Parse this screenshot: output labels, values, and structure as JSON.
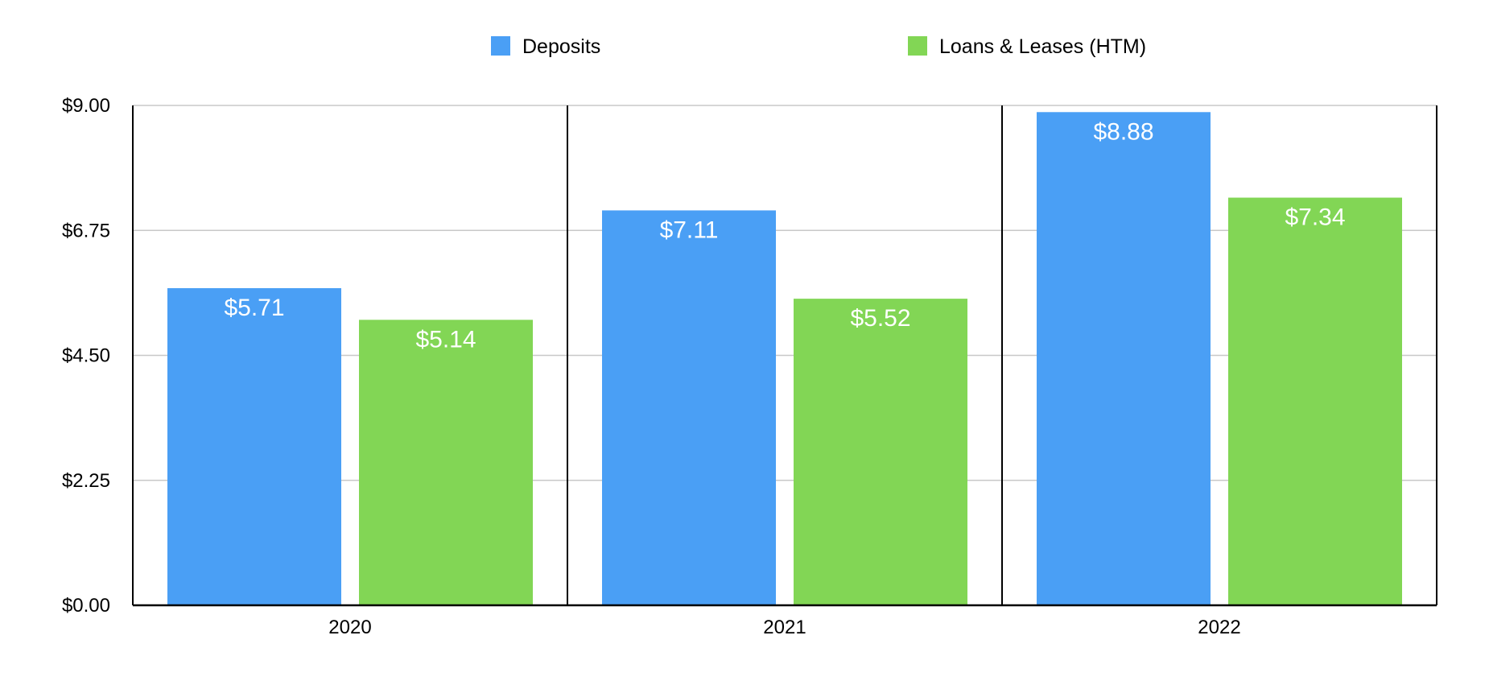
{
  "chart_data": {
    "type": "bar",
    "categories": [
      "2020",
      "2021",
      "2022"
    ],
    "series": [
      {
        "name": "Deposits",
        "values": [
          5.71,
          7.11,
          8.88
        ],
        "color": "#4a9ff5",
        "labels": [
          "$5.71",
          "$7.11",
          "$8.88"
        ]
      },
      {
        "name": "Loans & Leases (HTM)",
        "values": [
          5.14,
          5.52,
          7.34
        ],
        "color": "#82d655",
        "labels": [
          "$5.14",
          "$5.52",
          "$7.34"
        ]
      }
    ],
    "ylim": [
      0,
      9
    ],
    "yticks": [
      0,
      2.25,
      4.5,
      6.75,
      9
    ],
    "ytick_labels": [
      "$0.00",
      "$2.25",
      "$4.50",
      "$6.75",
      "$9.00"
    ],
    "grid": true,
    "legend_position": "top-center"
  },
  "colors": {
    "gridline": "#c8c8c8",
    "axis": "#000000",
    "background": "#ffffff"
  }
}
